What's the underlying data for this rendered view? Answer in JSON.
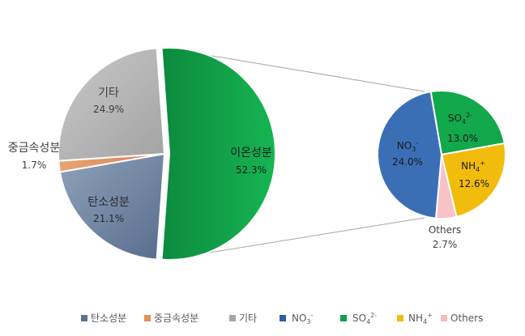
{
  "chart_data": [
    {
      "type": "pie",
      "slices": [
        {
          "label": "이온성분",
          "value": 52.3,
          "display": "52.3%",
          "color": "#0aa54a"
        },
        {
          "label": "탄소성분",
          "value": 21.1,
          "display": "21.1%",
          "color": "#66809f"
        },
        {
          "label": "중금속성분",
          "value": 1.7,
          "display": "1.7%",
          "color": "#e0915b"
        },
        {
          "label": "기타",
          "value": 24.9,
          "display": "24.9%",
          "color": "#b6b6b6"
        }
      ]
    },
    {
      "type": "pie",
      "breakdown_of": "이온성분",
      "slices": [
        {
          "label": "NO3-",
          "value": 24.0,
          "display": "24.0%",
          "color": "#3a6fb6"
        },
        {
          "label": "SO42-",
          "value": 13.0,
          "display": "13.0%",
          "color": "#12a84c"
        },
        {
          "label": "NH4+",
          "value": 12.6,
          "display": "12.6%",
          "color": "#f2bc0c"
        },
        {
          "label": "Others",
          "value": 2.7,
          "display": "2.7%",
          "color": "#f6c2c6"
        }
      ]
    }
  ],
  "legend": [
    {
      "key": "carbon",
      "label": "탄소성분",
      "color": "#5b7392"
    },
    {
      "key": "metal",
      "label": "중금속성분",
      "color": "#e0915b"
    },
    {
      "key": "etc",
      "label": "기타",
      "color": "#a6a6a6"
    },
    {
      "key": "no3",
      "label": "NO3-",
      "color": "#2f5fa6"
    },
    {
      "key": "so4",
      "label": "SO42-",
      "color": "#0fa04a"
    },
    {
      "key": "nh4",
      "label": "NH4+",
      "color": "#f2bc0c"
    },
    {
      "key": "others",
      "label": "Others",
      "color": "#f6b8bf"
    }
  ]
}
